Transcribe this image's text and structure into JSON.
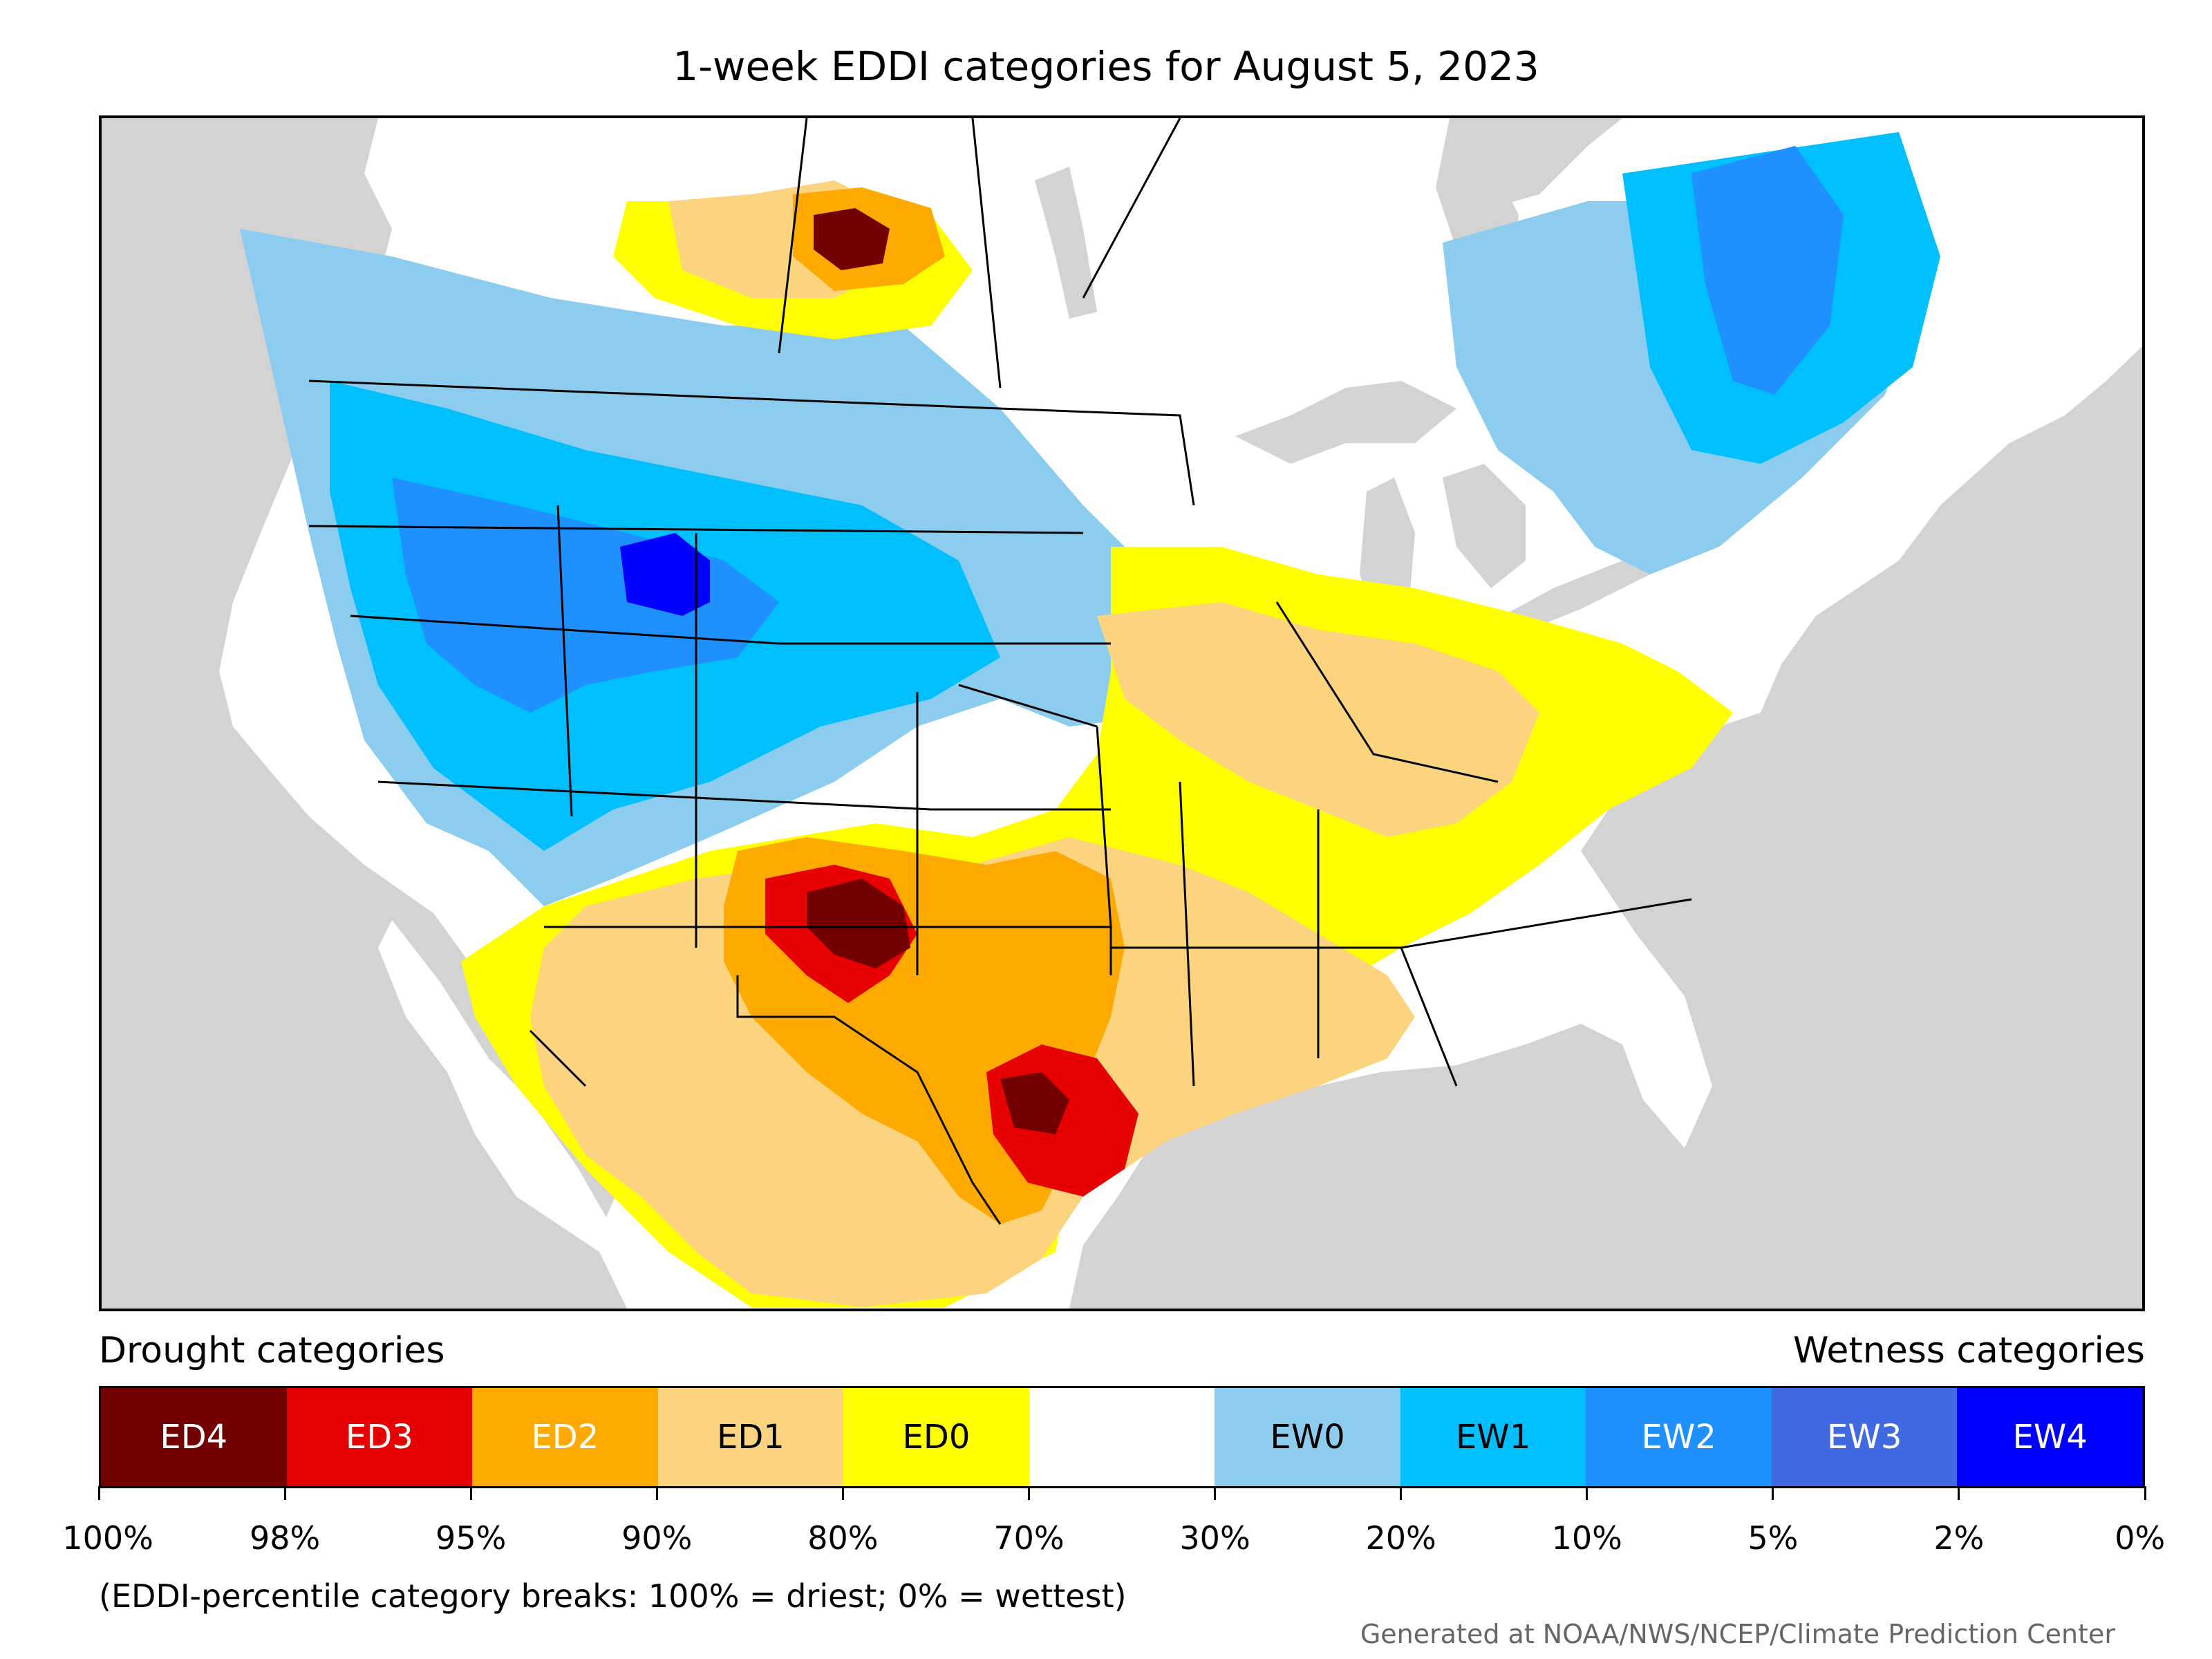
{
  "title": "1-week EDDI categories for August 5, 2023",
  "legend": {
    "left_title": "Drought categories",
    "right_title": "Wetness categories",
    "categories": [
      {
        "label": "ED4",
        "color": "#730000",
        "text_color": "#ffffff"
      },
      {
        "label": "ED3",
        "color": "#e60000",
        "text_color": "#ffffff"
      },
      {
        "label": "ED2",
        "color": "#ffaa00",
        "text_color": "#ffffff"
      },
      {
        "label": "ED1",
        "color": "#fcd37f",
        "text_color": "#000000"
      },
      {
        "label": "ED0",
        "color": "#ffff00",
        "text_color": "#000000"
      },
      {
        "label": "",
        "color": "#ffffff",
        "text_color": "#000000"
      },
      {
        "label": "EW0",
        "color": "#8ccdef",
        "text_color": "#000000"
      },
      {
        "label": "EW1",
        "color": "#00bfff",
        "text_color": "#000000"
      },
      {
        "label": "EW2",
        "color": "#1e90ff",
        "text_color": "#ffffff"
      },
      {
        "label": "EW3",
        "color": "#4169e1",
        "text_color": "#ffffff"
      },
      {
        "label": "EW4",
        "color": "#0000ff",
        "text_color": "#ffffff"
      }
    ],
    "breaks": [
      "100%",
      "98%",
      "95%",
      "90%",
      "80%",
      "70%",
      "30%",
      "20%",
      "10%",
      "5%",
      "2%",
      "0%"
    ]
  },
  "note": "(EDDI-percentile category breaks: 100% = driest; 0% = wettest)",
  "credit": "Generated at NOAA/NWS/NCEP/Climate Prediction Center",
  "map": {
    "background_color": "#d3d3d3",
    "land_color": "#ffffff",
    "border_color": "#000000"
  }
}
